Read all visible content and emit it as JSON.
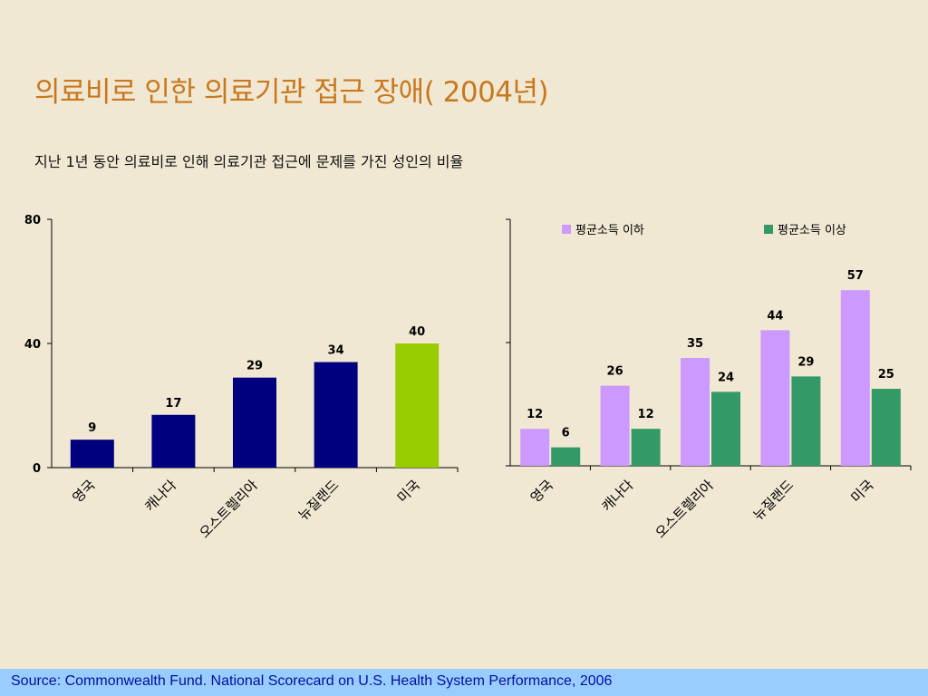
{
  "slide": {
    "title": "의료비로 인한 의료기관 접근 장애( 2004년)",
    "subtitle": "지난 1년 동안 의료비로 인해 의료기관 접근에 문제를 가진 성인의 비율",
    "source": "Source: Commonwealth Fund. National Scorecard on U.S. Health System Performance, 2006"
  },
  "chart_data": [
    {
      "type": "bar",
      "categories": [
        "영국",
        "캐나다",
        "오스트렐리아",
        "뉴질랜드",
        "미국"
      ],
      "values": [
        9,
        17,
        29,
        34,
        40
      ],
      "colors": [
        "#00007f",
        "#00007f",
        "#00007f",
        "#00007f",
        "#99cc00"
      ],
      "ylim": [
        0,
        80
      ],
      "yticks": [
        0,
        40,
        80
      ],
      "data_labels": true
    },
    {
      "type": "bar",
      "categories": [
        "영국",
        "캐나다",
        "오스트렐리아",
        "뉴질랜드",
        "미국"
      ],
      "series": [
        {
          "name": "평균소득 이하",
          "values": [
            12,
            26,
            35,
            44,
            57
          ],
          "color": "#cc99ff"
        },
        {
          "name": "평균소득 이상",
          "values": [
            6,
            12,
            24,
            29,
            25
          ],
          "color": "#339966"
        }
      ],
      "ylim": [
        0,
        80
      ],
      "legend": "top",
      "data_labels": true
    }
  ]
}
